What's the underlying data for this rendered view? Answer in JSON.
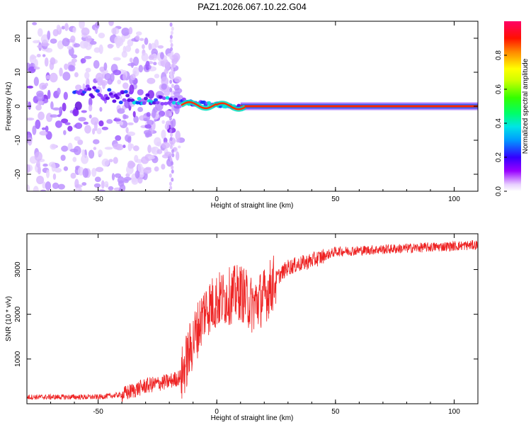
{
  "title": "PAZ1.2026.067.10.22.G04",
  "chart_data": [
    {
      "type": "heatmap",
      "xlabel": "Height of straight line (km)",
      "ylabel": "Frequency (Hz)",
      "xlim": [
        -80,
        110
      ],
      "ylim": [
        -25,
        25
      ],
      "xticks": [
        -50,
        0,
        50,
        100
      ],
      "yticks": [
        -20,
        -10,
        0,
        10,
        20
      ],
      "features": {
        "scatter_region_km": [
          -80,
          -15
        ],
        "vertical_streak_km": -19,
        "stable_line_start_km": 12,
        "stable_line_freq_hz": 0
      },
      "colorbar": {
        "label": "Normalized spectral amplitude",
        "range": [
          0,
          1
        ],
        "ticks": [
          "0.0",
          "0.2",
          "0.4",
          "0.6",
          "0.8"
        ],
        "tick_values": [
          0.0,
          0.2,
          0.4,
          0.6,
          0.8
        ]
      }
    },
    {
      "type": "line",
      "xlabel": "Height of straight line (km)",
      "ylabel": "SNR (10 * v/v)",
      "xlim": [
        -80,
        110
      ],
      "ylim": [
        0,
        3800
      ],
      "xticks": [
        -50,
        0,
        50,
        100
      ],
      "yticks": [
        1000,
        2000,
        3000
      ],
      "color": "#ee2222",
      "series_profile": {
        "x": [
          -80,
          -50,
          -40,
          -30,
          -20,
          -15,
          -10,
          -5,
          0,
          5,
          10,
          15,
          20,
          25,
          30,
          40,
          50,
          70,
          90,
          110
        ],
        "values": [
          150,
          150,
          200,
          400,
          500,
          600,
          1400,
          2100,
          2300,
          2400,
          2500,
          2200,
          2400,
          2800,
          3050,
          3200,
          3400,
          3450,
          3500,
          3550
        ]
      }
    }
  ]
}
